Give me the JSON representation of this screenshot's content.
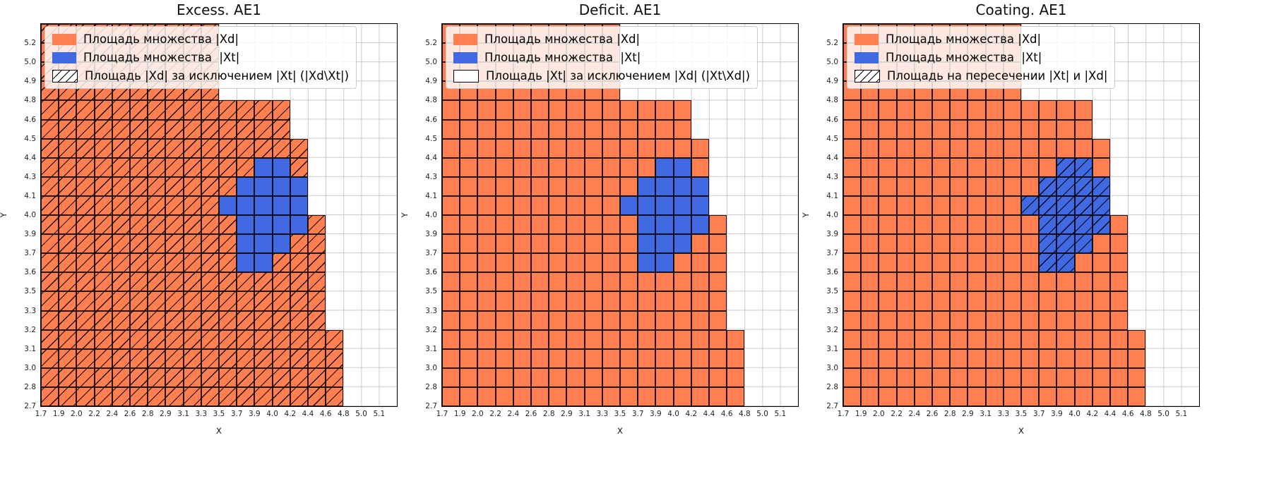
{
  "figure": {
    "background": "#ffffff"
  },
  "colors": {
    "xd_fill": "#ff7f50",
    "xt_fill": "#4169e1",
    "grid_line": "#c9c9c9",
    "cell_edge": "#000000",
    "hatch_line": "#000000",
    "legend_bg": "rgba(255,255,255,0.82)",
    "legend_border": "#cccccc"
  },
  "regions": {
    "description": "20x20 grid of cells; rows indexed bottom-to-top matching y_ticks, columns left-to-right matching x_ticks; xd_columns_per_row gives, for each row, how many columns from the left are filled with the |Xd| set; xt_cells lists the |Xt| set cells overlaid on top",
    "xd_columns_per_row": [
      17,
      17,
      17,
      17,
      16,
      16,
      16,
      16,
      16,
      16,
      15,
      15,
      15,
      15,
      14,
      14,
      10,
      10,
      10,
      10
    ],
    "xt_cells": [
      {
        "row": 7,
        "col_start": 11,
        "col_end": 13
      },
      {
        "row": 8,
        "col_start": 11,
        "col_end": 14
      },
      {
        "row": 9,
        "col_start": 11,
        "col_end": 15
      },
      {
        "row": 10,
        "col_start": 10,
        "col_end": 15
      },
      {
        "row": 11,
        "col_start": 11,
        "col_end": 15
      },
      {
        "row": 12,
        "col_start": 12,
        "col_end": 14
      }
    ]
  },
  "chart_data": [
    {
      "type": "heatmap",
      "title": "Excess. AE1",
      "xlabel": "X",
      "ylabel": "Y",
      "x_ticks": [
        "1.7",
        "1.9",
        "2.0",
        "2.2",
        "2.4",
        "2.6",
        "2.8",
        "2.9",
        "3.1",
        "3.3",
        "3.5",
        "3.7",
        "3.9",
        "4.0",
        "4.2",
        "4.4",
        "4.6",
        "4.8",
        "5.0",
        "5.1"
      ],
      "y_ticks": [
        "2.7",
        "2.8",
        "3.0",
        "3.1",
        "3.2",
        "3.3",
        "3.5",
        "3.6",
        "3.7",
        "3.9",
        "4.0",
        "4.1",
        "4.3",
        "4.4",
        "4.5",
        "4.6",
        "4.8",
        "4.9",
        "5.0",
        "5.2"
      ],
      "grid": true,
      "legend_position": "upper-left",
      "hatch_rule": "xd_minus_xt",
      "legend": [
        {
          "swatch": "xd",
          "label": "Площадь множества |Xd|"
        },
        {
          "swatch": "xt",
          "label": "Площадь множества  |Xt|"
        },
        {
          "swatch": "hatch",
          "label": "Площадь |Xd| за исключением |Xt| (|Xd\\Xt|)"
        }
      ]
    },
    {
      "type": "heatmap",
      "title": "Deficit. AE1",
      "xlabel": "X",
      "ylabel": "Y",
      "x_ticks": [
        "1.7",
        "1.9",
        "2.0",
        "2.2",
        "2.4",
        "2.6",
        "2.8",
        "2.9",
        "3.1",
        "3.3",
        "3.5",
        "3.7",
        "3.9",
        "4.0",
        "4.2",
        "4.4",
        "4.6",
        "4.8",
        "5.0",
        "5.1"
      ],
      "y_ticks": [
        "2.7",
        "2.8",
        "3.0",
        "3.1",
        "3.2",
        "3.3",
        "3.5",
        "3.6",
        "3.7",
        "3.9",
        "4.0",
        "4.1",
        "4.3",
        "4.4",
        "4.5",
        "4.6",
        "4.8",
        "4.9",
        "5.0",
        "5.2"
      ],
      "grid": true,
      "legend_position": "upper-left",
      "hatch_rule": "xt_minus_xd",
      "legend": [
        {
          "swatch": "xd",
          "label": "Площадь множества |Xd|"
        },
        {
          "swatch": "xt",
          "label": "Площадь множества  |Xt|"
        },
        {
          "swatch": "empty",
          "label": "Площадь |Xt| за исключением |Xd| (|Xt\\Xd|)"
        }
      ]
    },
    {
      "type": "heatmap",
      "title": "Coating. AE1",
      "xlabel": "X",
      "ylabel": "Y",
      "x_ticks": [
        "1.7",
        "1.9",
        "2.0",
        "2.2",
        "2.4",
        "2.6",
        "2.8",
        "2.9",
        "3.1",
        "3.3",
        "3.5",
        "3.7",
        "3.9",
        "4.0",
        "4.2",
        "4.4",
        "4.6",
        "4.8",
        "5.0",
        "5.1"
      ],
      "y_ticks": [
        "2.7",
        "2.8",
        "3.0",
        "3.1",
        "3.2",
        "3.3",
        "3.5",
        "3.6",
        "3.7",
        "3.9",
        "4.0",
        "4.1",
        "4.3",
        "4.4",
        "4.5",
        "4.6",
        "4.8",
        "4.9",
        "5.0",
        "5.2"
      ],
      "grid": true,
      "legend_position": "upper-left",
      "hatch_rule": "xt_and_xd",
      "legend": [
        {
          "swatch": "xd",
          "label": "Площадь множества |Xd|"
        },
        {
          "swatch": "xt",
          "label": "Площадь множества  |Xt|"
        },
        {
          "swatch": "hatch",
          "label": "Площадь на пересечении |Xt| и |Xd|"
        }
      ]
    }
  ]
}
